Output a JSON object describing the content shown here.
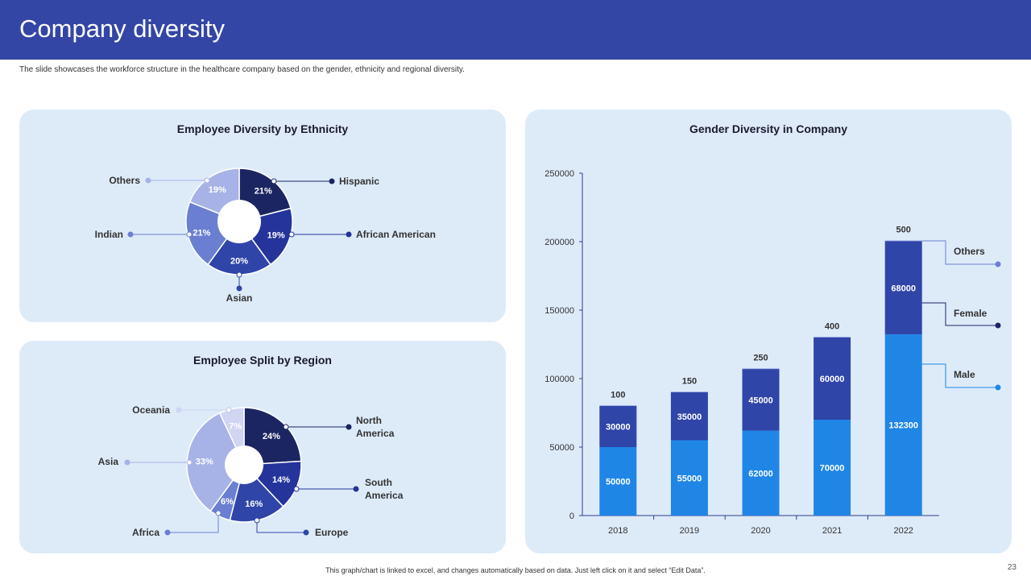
{
  "header": {
    "title": "Company diversity",
    "subtitle": "The slide showcases the workforce structure in the healthcare company based on the gender, ethnicity and regional diversity."
  },
  "footer": {
    "note": "This graph/chart is linked to excel, and changes automatically based on data. Just left click on it and select “Edit Data”.",
    "page_number": "23"
  },
  "colors": {
    "header": "#3346a6",
    "panel": "#ddebf9",
    "navy": "#1b2561",
    "dark_blue": "#24349b",
    "blue": "#2f45a8",
    "mid_blue": "#6a7fd1",
    "light_blue": "#a7b3e6",
    "pale_blue": "#cfd5f2",
    "bright_blue": "#1f86e6"
  },
  "chart_data": [
    {
      "type": "pie",
      "title": "Employee Diversity by Ethnicity",
      "donut": true,
      "slices": [
        {
          "label": "Hispanic",
          "value": 21,
          "display": "21%",
          "color": "#1b2561"
        },
        {
          "label": "African American",
          "value": 19,
          "display": "19%",
          "color": "#24349b"
        },
        {
          "label": "Asian",
          "value": 20,
          "display": "20%",
          "color": "#2f45a8"
        },
        {
          "label": "Indian",
          "value": 21,
          "display": "21%",
          "color": "#6a7fd1"
        },
        {
          "label": "Others",
          "value": 19,
          "display": "19%",
          "color": "#a7b3e6"
        }
      ]
    },
    {
      "type": "pie",
      "title": "Employee Split by Region",
      "donut": true,
      "slices": [
        {
          "label": "North America",
          "value": 24,
          "display": "24%",
          "color": "#1b2561"
        },
        {
          "label": "South America",
          "value": 14,
          "display": "14%",
          "color": "#24349b"
        },
        {
          "label": "Europe",
          "value": 16,
          "display": "16%",
          "color": "#2f45a8"
        },
        {
          "label": "Africa",
          "value": 6,
          "display": "6%",
          "color": "#6a7fd1"
        },
        {
          "label": "Asia",
          "value": 33,
          "display": "33%",
          "color": "#a7b3e6"
        },
        {
          "label": "Oceania",
          "value": 7,
          "display": "7%",
          "color": "#cfd5f2"
        }
      ]
    },
    {
      "type": "bar",
      "stacked": true,
      "title": "Gender Diversity in Company",
      "categories": [
        "2018",
        "2019",
        "2020",
        "2021",
        "2022"
      ],
      "ylim": [
        0,
        250000
      ],
      "yticks": [
        0,
        50000,
        100000,
        150000,
        200000,
        250000
      ],
      "series": [
        {
          "name": "Male",
          "values": [
            50000,
            55000,
            62000,
            70000,
            132300
          ],
          "color": "#1f86e6",
          "legend_marker": "#1f86e6"
        },
        {
          "name": "Female",
          "values": [
            30000,
            35000,
            45000,
            60000,
            68000
          ],
          "color": "#2f45a8",
          "legend_marker": "#1b2561"
        },
        {
          "name": "Others",
          "values": [
            100,
            150,
            250,
            400,
            500
          ],
          "color": "#7f8fd8",
          "legend_marker": "#6a7fd1"
        }
      ]
    }
  ]
}
